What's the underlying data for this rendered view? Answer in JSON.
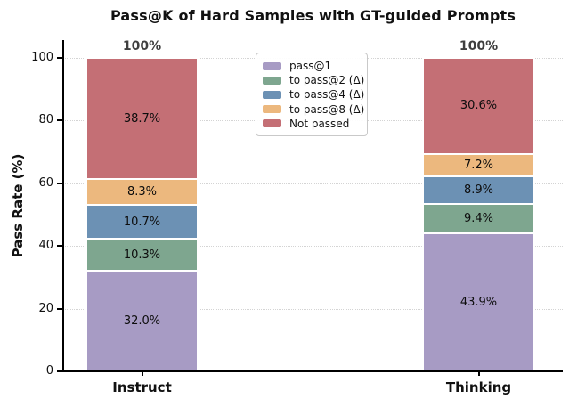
{
  "chart_data": {
    "type": "bar",
    "stacked": true,
    "title": "Pass@K of Hard Samples with GT-guided Prompts",
    "ylabel": "Pass Rate (%)",
    "ylim": [
      0,
      100
    ],
    "yticks": [
      0,
      20,
      40,
      60,
      80,
      100
    ],
    "grid": "horizontal-dotted",
    "legend_position": "upper-center",
    "categories": [
      "Instruct",
      "Thinking"
    ],
    "series": [
      {
        "name": "pass@1",
        "color": "#a79bc4",
        "values": [
          32.0,
          43.9
        ],
        "labels": [
          "32.0%",
          "43.9%"
        ]
      },
      {
        "name": "to pass@2 (Δ)",
        "color": "#7ea68f",
        "values": [
          10.3,
          9.4
        ],
        "labels": [
          "10.3%",
          "9.4%"
        ]
      },
      {
        "name": "to pass@4 (Δ)",
        "color": "#6c91b4",
        "values": [
          10.7,
          8.9
        ],
        "labels": [
          "10.7%",
          "8.9%"
        ]
      },
      {
        "name": "to pass@8 (Δ)",
        "color": "#ecb87e",
        "values": [
          8.3,
          7.2
        ],
        "labels": [
          "8.3%",
          "7.2%"
        ]
      },
      {
        "name": "Not passed",
        "color": "#c46f75",
        "values": [
          38.7,
          30.6
        ],
        "labels": [
          "38.7%",
          "30.6%"
        ]
      }
    ],
    "totals": [
      "100%",
      "100%"
    ],
    "total_label_color": "#3f3f3f",
    "axis_color": "#000000",
    "grid_color": "#d4d4d4",
    "segment_label_color": "#0d0d0d"
  }
}
